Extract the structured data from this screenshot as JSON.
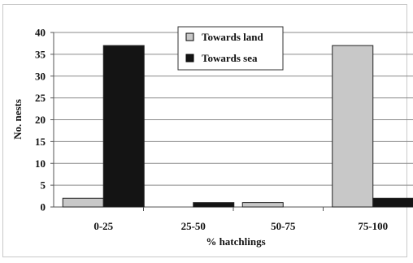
{
  "chart_data": {
    "type": "bar",
    "title": "",
    "xlabel": "% hatchlings",
    "ylabel": "No. nests",
    "categories": [
      "0-25",
      "25-50",
      "50-75",
      "75-100"
    ],
    "series": [
      {
        "name": "Towards land",
        "values": [
          2,
          0,
          1,
          37
        ],
        "color": "#c8c8c8"
      },
      {
        "name": "Towards sea",
        "values": [
          37,
          1,
          0,
          2
        ],
        "color": "#141414"
      }
    ],
    "ylim": [
      0,
      40
    ],
    "yticks": [
      0,
      5,
      10,
      15,
      20,
      25,
      30,
      35,
      40
    ],
    "grid": true,
    "legend": "top-center"
  }
}
